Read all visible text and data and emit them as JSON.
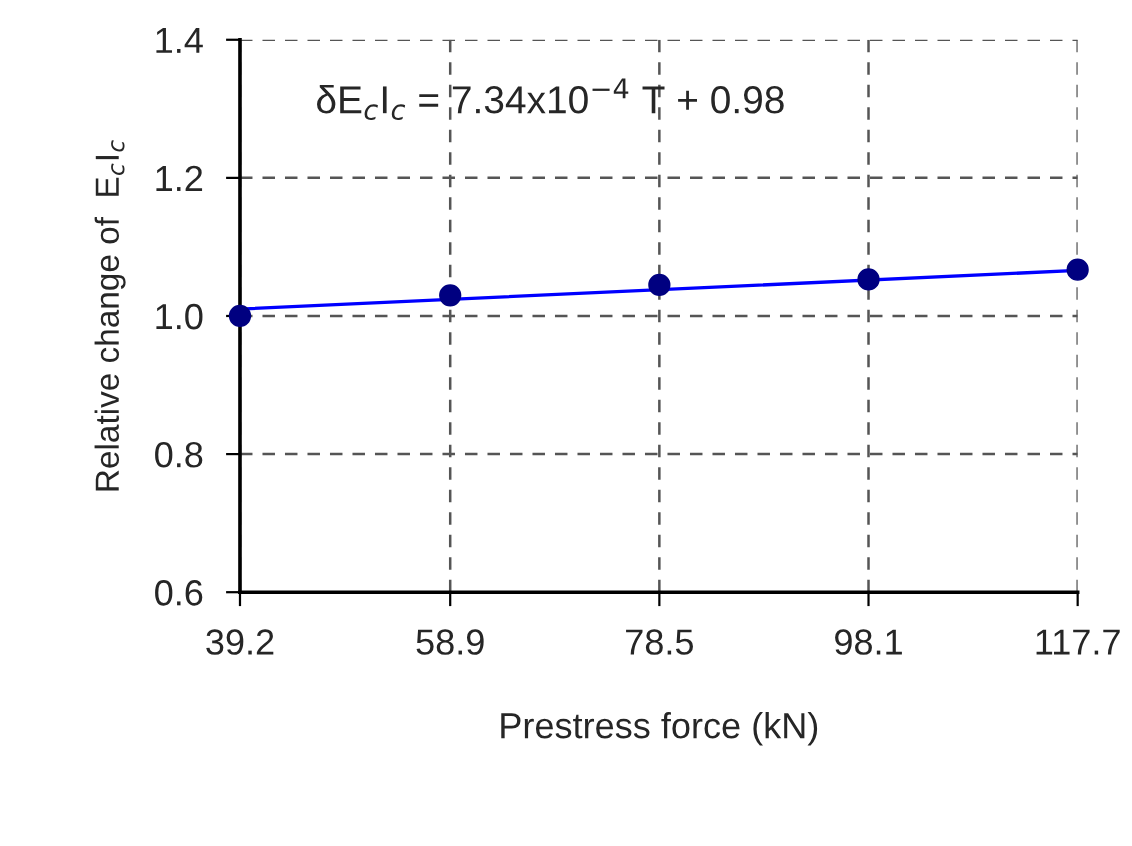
{
  "chart_data": {
    "type": "scatter",
    "xlabel": "Prestress force (kN)",
    "ylabel": "Relative change of  E$_{c}$I$_{c}$",
    "annotations": [
      "δE$_{c}$I$_{c}$ = 7.34x10$^{−4}$ T + 0.98"
    ],
    "series": [
      {
        "color": "#000080",
        "x": [
          39.2,
          58.9,
          78.5,
          98.1,
          117.7
        ],
        "values": [
          1.0,
          1.03,
          1.045,
          1.053,
          1.067
        ],
        "marker": "circle"
      },
      {
        "type": "line",
        "color": "#0000ff",
        "x": [
          39.2,
          117.7
        ],
        "values": [
          1.01,
          1.066
        ],
        "marker": "none",
        "line_style": "solid"
      }
    ],
    "xlim": [
      39.2,
      117.7
    ],
    "xticks": [
      39.2,
      58.9,
      78.5,
      98.1,
      117.7
    ],
    "ylim": [
      0.6,
      1.4
    ],
    "yticks": [
      0.6,
      0.8,
      {
        "value": 1.0,
        "label": "1.0"
      },
      1.2,
      1.4
    ],
    "grid": true,
    "legend": false
  }
}
